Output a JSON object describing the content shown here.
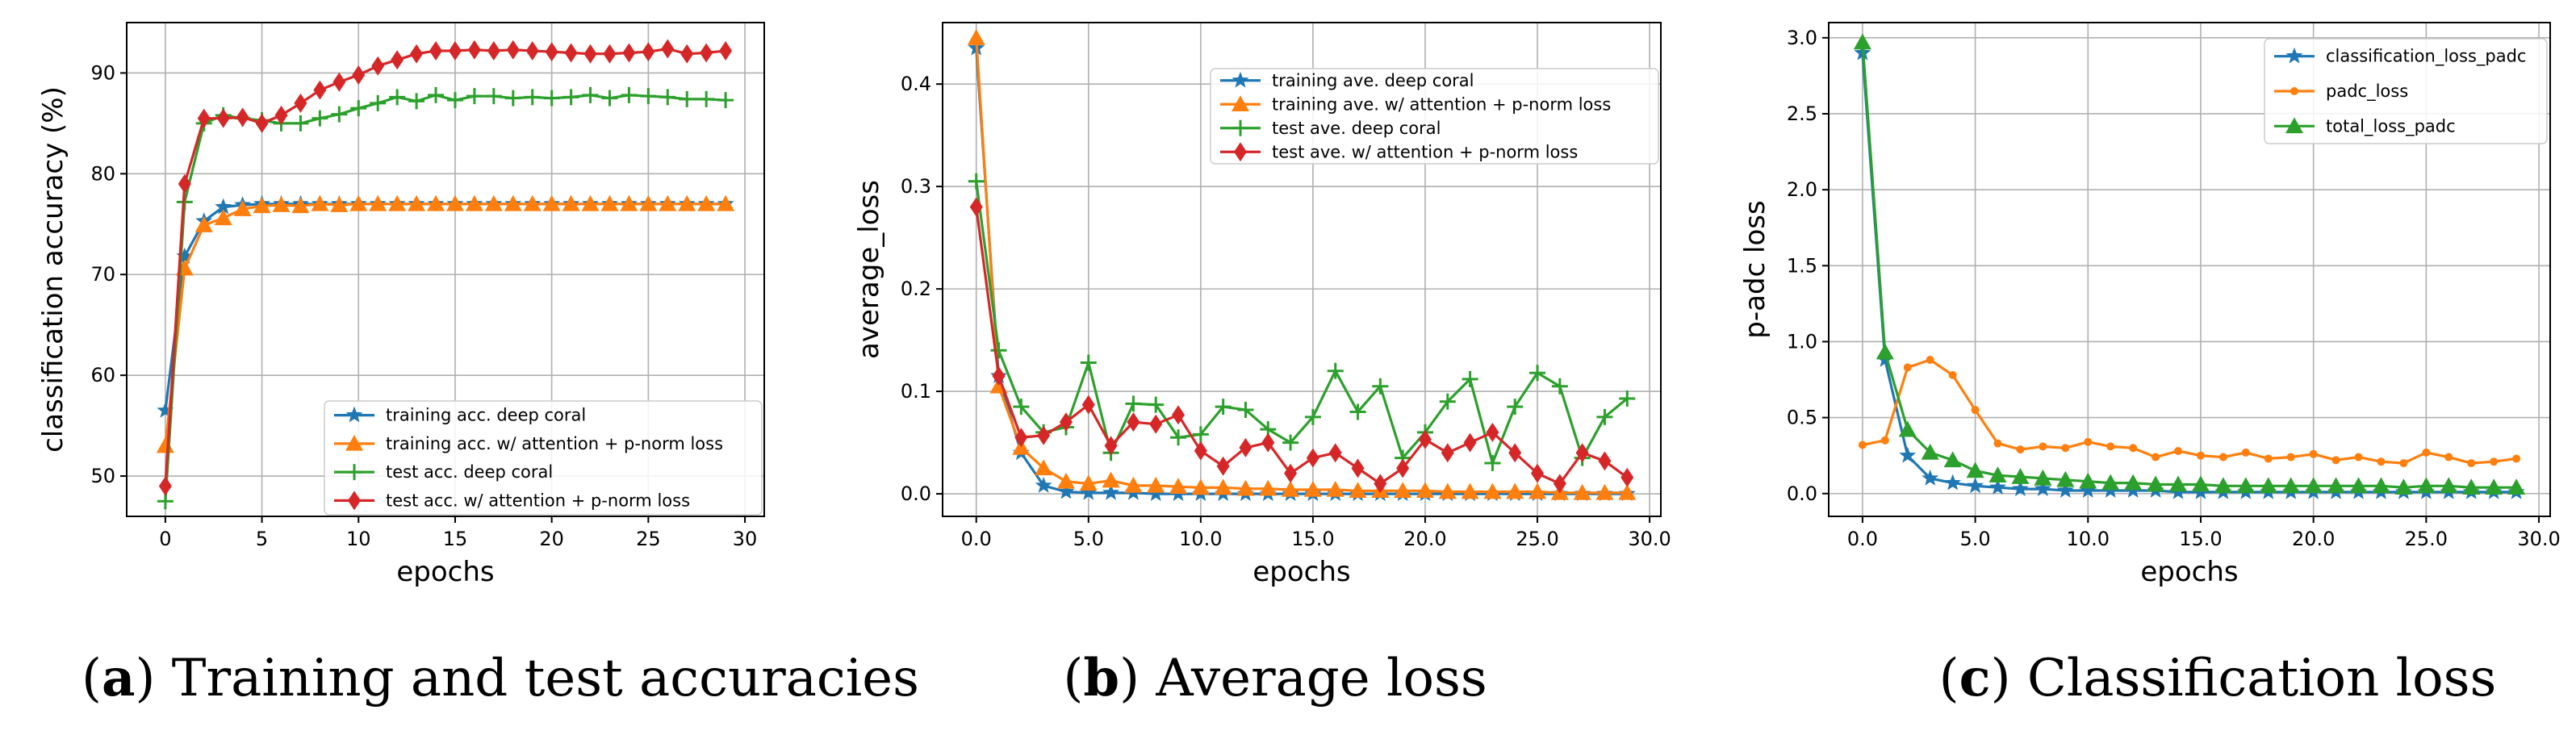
{
  "colors": {
    "blue": "#1f77b4",
    "orange": "#ff7f0e",
    "green": "#2ca02c",
    "red": "#d62728"
  },
  "chart_data": [
    {
      "type": "line",
      "id": "a",
      "xlabel": "epochs",
      "ylabel": "classification accuracy (%)",
      "xlim": [
        -2,
        31
      ],
      "ylim": [
        46,
        95
      ],
      "xticks": [
        0,
        5,
        10,
        15,
        20,
        25,
        30
      ],
      "yticks": [
        50,
        60,
        70,
        80,
        90
      ],
      "grid": true,
      "legend_position": "lower-right",
      "caption": {
        "letter": "a",
        "text": "Training and test accuracies"
      },
      "series": [
        {
          "name": "training acc. deep coral",
          "color": "blue",
          "marker": "star",
          "x": [
            0,
            1,
            2,
            3,
            4,
            5,
            6,
            7,
            8,
            9,
            10,
            11,
            12,
            13,
            14,
            15,
            16,
            17,
            18,
            19,
            20,
            21,
            22,
            23,
            24,
            25,
            26,
            27,
            28,
            29
          ],
          "values": [
            56.5,
            71.8,
            75.3,
            76.7,
            76.9,
            77.0,
            77.0,
            77.0,
            77.0,
            77.0,
            77.0,
            77.0,
            77.0,
            77.0,
            77.0,
            77.0,
            77.0,
            77.0,
            77.0,
            77.0,
            77.0,
            77.0,
            77.0,
            77.0,
            77.0,
            77.0,
            77.0,
            77.0,
            77.0,
            77.0
          ]
        },
        {
          "name": "training acc. w/ attention + p-norm loss",
          "color": "orange",
          "marker": "triangle",
          "x": [
            0,
            1,
            2,
            3,
            4,
            5,
            6,
            7,
            8,
            9,
            10,
            11,
            12,
            13,
            14,
            15,
            16,
            17,
            18,
            19,
            20,
            21,
            22,
            23,
            24,
            25,
            26,
            27,
            28,
            29
          ],
          "values": [
            53.0,
            70.6,
            74.9,
            75.6,
            76.5,
            76.8,
            76.9,
            76.8,
            77.0,
            76.9,
            77.0,
            77.0,
            77.0,
            77.0,
            77.0,
            77.0,
            77.0,
            77.0,
            77.0,
            77.0,
            77.0,
            77.0,
            77.0,
            77.0,
            77.0,
            77.0,
            77.0,
            77.0,
            77.0,
            77.0
          ]
        },
        {
          "name": "test acc. deep coral",
          "color": "green",
          "marker": "plus",
          "x": [
            0,
            1,
            2,
            3,
            4,
            5,
            6,
            7,
            8,
            9,
            10,
            11,
            12,
            13,
            14,
            15,
            16,
            17,
            18,
            19,
            20,
            21,
            22,
            23,
            24,
            25,
            26,
            27,
            28,
            29
          ],
          "values": [
            47.5,
            77.2,
            85.0,
            85.8,
            85.5,
            85.3,
            85.0,
            85.0,
            85.5,
            85.9,
            86.5,
            87.0,
            87.6,
            87.2,
            87.8,
            87.3,
            87.7,
            87.7,
            87.5,
            87.6,
            87.5,
            87.6,
            87.8,
            87.5,
            87.8,
            87.7,
            87.6,
            87.4,
            87.4,
            87.3
          ]
        },
        {
          "name": "test acc. w/ attention + p-norm loss",
          "color": "red",
          "marker": "diamond",
          "x": [
            0,
            1,
            2,
            3,
            4,
            5,
            6,
            7,
            8,
            9,
            10,
            11,
            12,
            13,
            14,
            15,
            16,
            17,
            18,
            19,
            20,
            21,
            22,
            23,
            24,
            25,
            26,
            27,
            28,
            29
          ],
          "values": [
            49.0,
            79.0,
            85.5,
            85.5,
            85.6,
            85.0,
            85.8,
            87.0,
            88.3,
            89.1,
            89.8,
            90.7,
            91.3,
            91.9,
            92.2,
            92.2,
            92.3,
            92.2,
            92.3,
            92.2,
            92.1,
            92.0,
            91.9,
            91.9,
            92.0,
            92.1,
            92.4,
            91.9,
            92.0,
            92.2
          ]
        }
      ]
    },
    {
      "type": "line",
      "id": "b",
      "xlabel": "epochs",
      "ylabel": "average_loss",
      "xlim": [
        -1.5,
        30.5
      ],
      "ylim": [
        -0.022,
        0.46
      ],
      "xticks": [
        0,
        5,
        10,
        15,
        20,
        25,
        30
      ],
      "yticks": [
        0.0,
        0.1,
        0.2,
        0.3,
        0.4
      ],
      "grid": true,
      "legend_position": "top-right",
      "caption": {
        "letter": "b",
        "text": "Average loss"
      },
      "series": [
        {
          "name": "training ave. deep coral",
          "color": "blue",
          "marker": "star",
          "x": [
            0,
            1,
            2,
            3,
            4,
            5,
            6,
            7,
            8,
            9,
            10,
            11,
            12,
            13,
            14,
            15,
            16,
            17,
            18,
            19,
            20,
            21,
            22,
            23,
            24,
            25,
            26,
            27,
            28,
            29
          ],
          "values": [
            0.435,
            0.115,
            0.04,
            0.008,
            0.002,
            0.001,
            0.001,
            0.001,
            0.0,
            0.0,
            0.0,
            0.0,
            0.0,
            0.0,
            0.0,
            0.0,
            0.0,
            0.0,
            0.0,
            0.0,
            0.0,
            0.0,
            0.0,
            0.0,
            0.0,
            0.0,
            0.0,
            0.0,
            0.0,
            0.0
          ]
        },
        {
          "name": "training ave. w/ attention + p-norm loss",
          "color": "orange",
          "marker": "triangle",
          "x": [
            0,
            1,
            2,
            3,
            4,
            5,
            6,
            7,
            8,
            9,
            10,
            11,
            12,
            13,
            14,
            15,
            16,
            17,
            18,
            19,
            20,
            21,
            22,
            23,
            24,
            25,
            26,
            27,
            28,
            29
          ],
          "values": [
            0.445,
            0.105,
            0.045,
            0.025,
            0.012,
            0.01,
            0.013,
            0.008,
            0.008,
            0.007,
            0.006,
            0.006,
            0.005,
            0.005,
            0.004,
            0.004,
            0.004,
            0.003,
            0.003,
            0.003,
            0.003,
            0.002,
            0.002,
            0.002,
            0.002,
            0.002,
            0.001,
            0.001,
            0.001,
            0.001
          ]
        },
        {
          "name": "test ave. deep coral",
          "color": "green",
          "marker": "plus",
          "x": [
            0,
            1,
            2,
            3,
            4,
            5,
            6,
            7,
            8,
            9,
            10,
            11,
            12,
            13,
            14,
            15,
            16,
            17,
            18,
            19,
            20,
            21,
            22,
            23,
            24,
            25,
            26,
            27,
            28,
            29
          ],
          "values": [
            0.305,
            0.14,
            0.085,
            0.06,
            0.065,
            0.128,
            0.04,
            0.088,
            0.087,
            0.055,
            0.058,
            0.085,
            0.082,
            0.063,
            0.05,
            0.075,
            0.12,
            0.08,
            0.105,
            0.035,
            0.06,
            0.09,
            0.112,
            0.03,
            0.085,
            0.118,
            0.105,
            0.035,
            0.075,
            0.093
          ]
        },
        {
          "name": "test ave. w/ attention + p-norm loss",
          "color": "red",
          "marker": "diamond",
          "x": [
            0,
            1,
            2,
            3,
            4,
            5,
            6,
            7,
            8,
            9,
            10,
            11,
            12,
            13,
            14,
            15,
            16,
            17,
            18,
            19,
            20,
            21,
            22,
            23,
            24,
            25,
            26,
            27,
            28,
            29
          ],
          "values": [
            0.28,
            0.115,
            0.055,
            0.057,
            0.07,
            0.087,
            0.047,
            0.07,
            0.068,
            0.077,
            0.042,
            0.027,
            0.045,
            0.05,
            0.02,
            0.035,
            0.04,
            0.025,
            0.01,
            0.025,
            0.053,
            0.04,
            0.05,
            0.06,
            0.04,
            0.02,
            0.01,
            0.04,
            0.032,
            0.016
          ]
        }
      ]
    },
    {
      "type": "line",
      "id": "c",
      "xlabel": "epochs",
      "ylabel": "p-adc loss",
      "xlim": [
        -1.5,
        30.5
      ],
      "ylim": [
        -0.15,
        3.1
      ],
      "xticks": [
        0,
        5,
        10,
        15,
        20,
        25,
        30
      ],
      "yticks": [
        0.0,
        0.5,
        1.0,
        1.5,
        2.0,
        2.5,
        3.0
      ],
      "grid": true,
      "legend_position": "top-right",
      "caption": {
        "letter": "c",
        "text": "Classification loss"
      },
      "series": [
        {
          "name": "classification_loss_padc",
          "color": "blue",
          "marker": "star",
          "x": [
            0,
            1,
            2,
            3,
            4,
            5,
            6,
            7,
            8,
            9,
            10,
            11,
            12,
            13,
            14,
            15,
            16,
            17,
            18,
            19,
            20,
            21,
            22,
            23,
            24,
            25,
            26,
            27,
            28,
            29
          ],
          "values": [
            2.9,
            0.88,
            0.25,
            0.1,
            0.07,
            0.05,
            0.04,
            0.03,
            0.03,
            0.02,
            0.02,
            0.02,
            0.02,
            0.02,
            0.01,
            0.01,
            0.01,
            0.01,
            0.01,
            0.01,
            0.01,
            0.01,
            0.01,
            0.01,
            0.01,
            0.01,
            0.01,
            0.01,
            0.01,
            0.01
          ]
        },
        {
          "name": "padc_loss",
          "color": "orange",
          "marker": "circle",
          "x": [
            0,
            1,
            2,
            3,
            4,
            5,
            6,
            7,
            8,
            9,
            10,
            11,
            12,
            13,
            14,
            15,
            16,
            17,
            18,
            19,
            20,
            21,
            22,
            23,
            24,
            25,
            26,
            27,
            28,
            29
          ],
          "values": [
            0.32,
            0.35,
            0.83,
            0.88,
            0.78,
            0.55,
            0.33,
            0.29,
            0.31,
            0.3,
            0.34,
            0.31,
            0.3,
            0.24,
            0.28,
            0.25,
            0.24,
            0.27,
            0.23,
            0.24,
            0.26,
            0.22,
            0.24,
            0.21,
            0.2,
            0.27,
            0.24,
            0.2,
            0.21,
            0.23
          ]
        },
        {
          "name": "total_loss_padc",
          "color": "green",
          "marker": "triangle",
          "x": [
            0,
            1,
            2,
            3,
            4,
            5,
            6,
            7,
            8,
            9,
            10,
            11,
            12,
            13,
            14,
            15,
            16,
            17,
            18,
            19,
            20,
            21,
            22,
            23,
            24,
            25,
            26,
            27,
            28,
            29
          ],
          "values": [
            2.97,
            0.93,
            0.42,
            0.27,
            0.22,
            0.15,
            0.12,
            0.11,
            0.1,
            0.09,
            0.08,
            0.07,
            0.07,
            0.06,
            0.06,
            0.06,
            0.05,
            0.05,
            0.05,
            0.05,
            0.05,
            0.05,
            0.05,
            0.05,
            0.04,
            0.05,
            0.05,
            0.04,
            0.04,
            0.04
          ]
        }
      ]
    }
  ]
}
